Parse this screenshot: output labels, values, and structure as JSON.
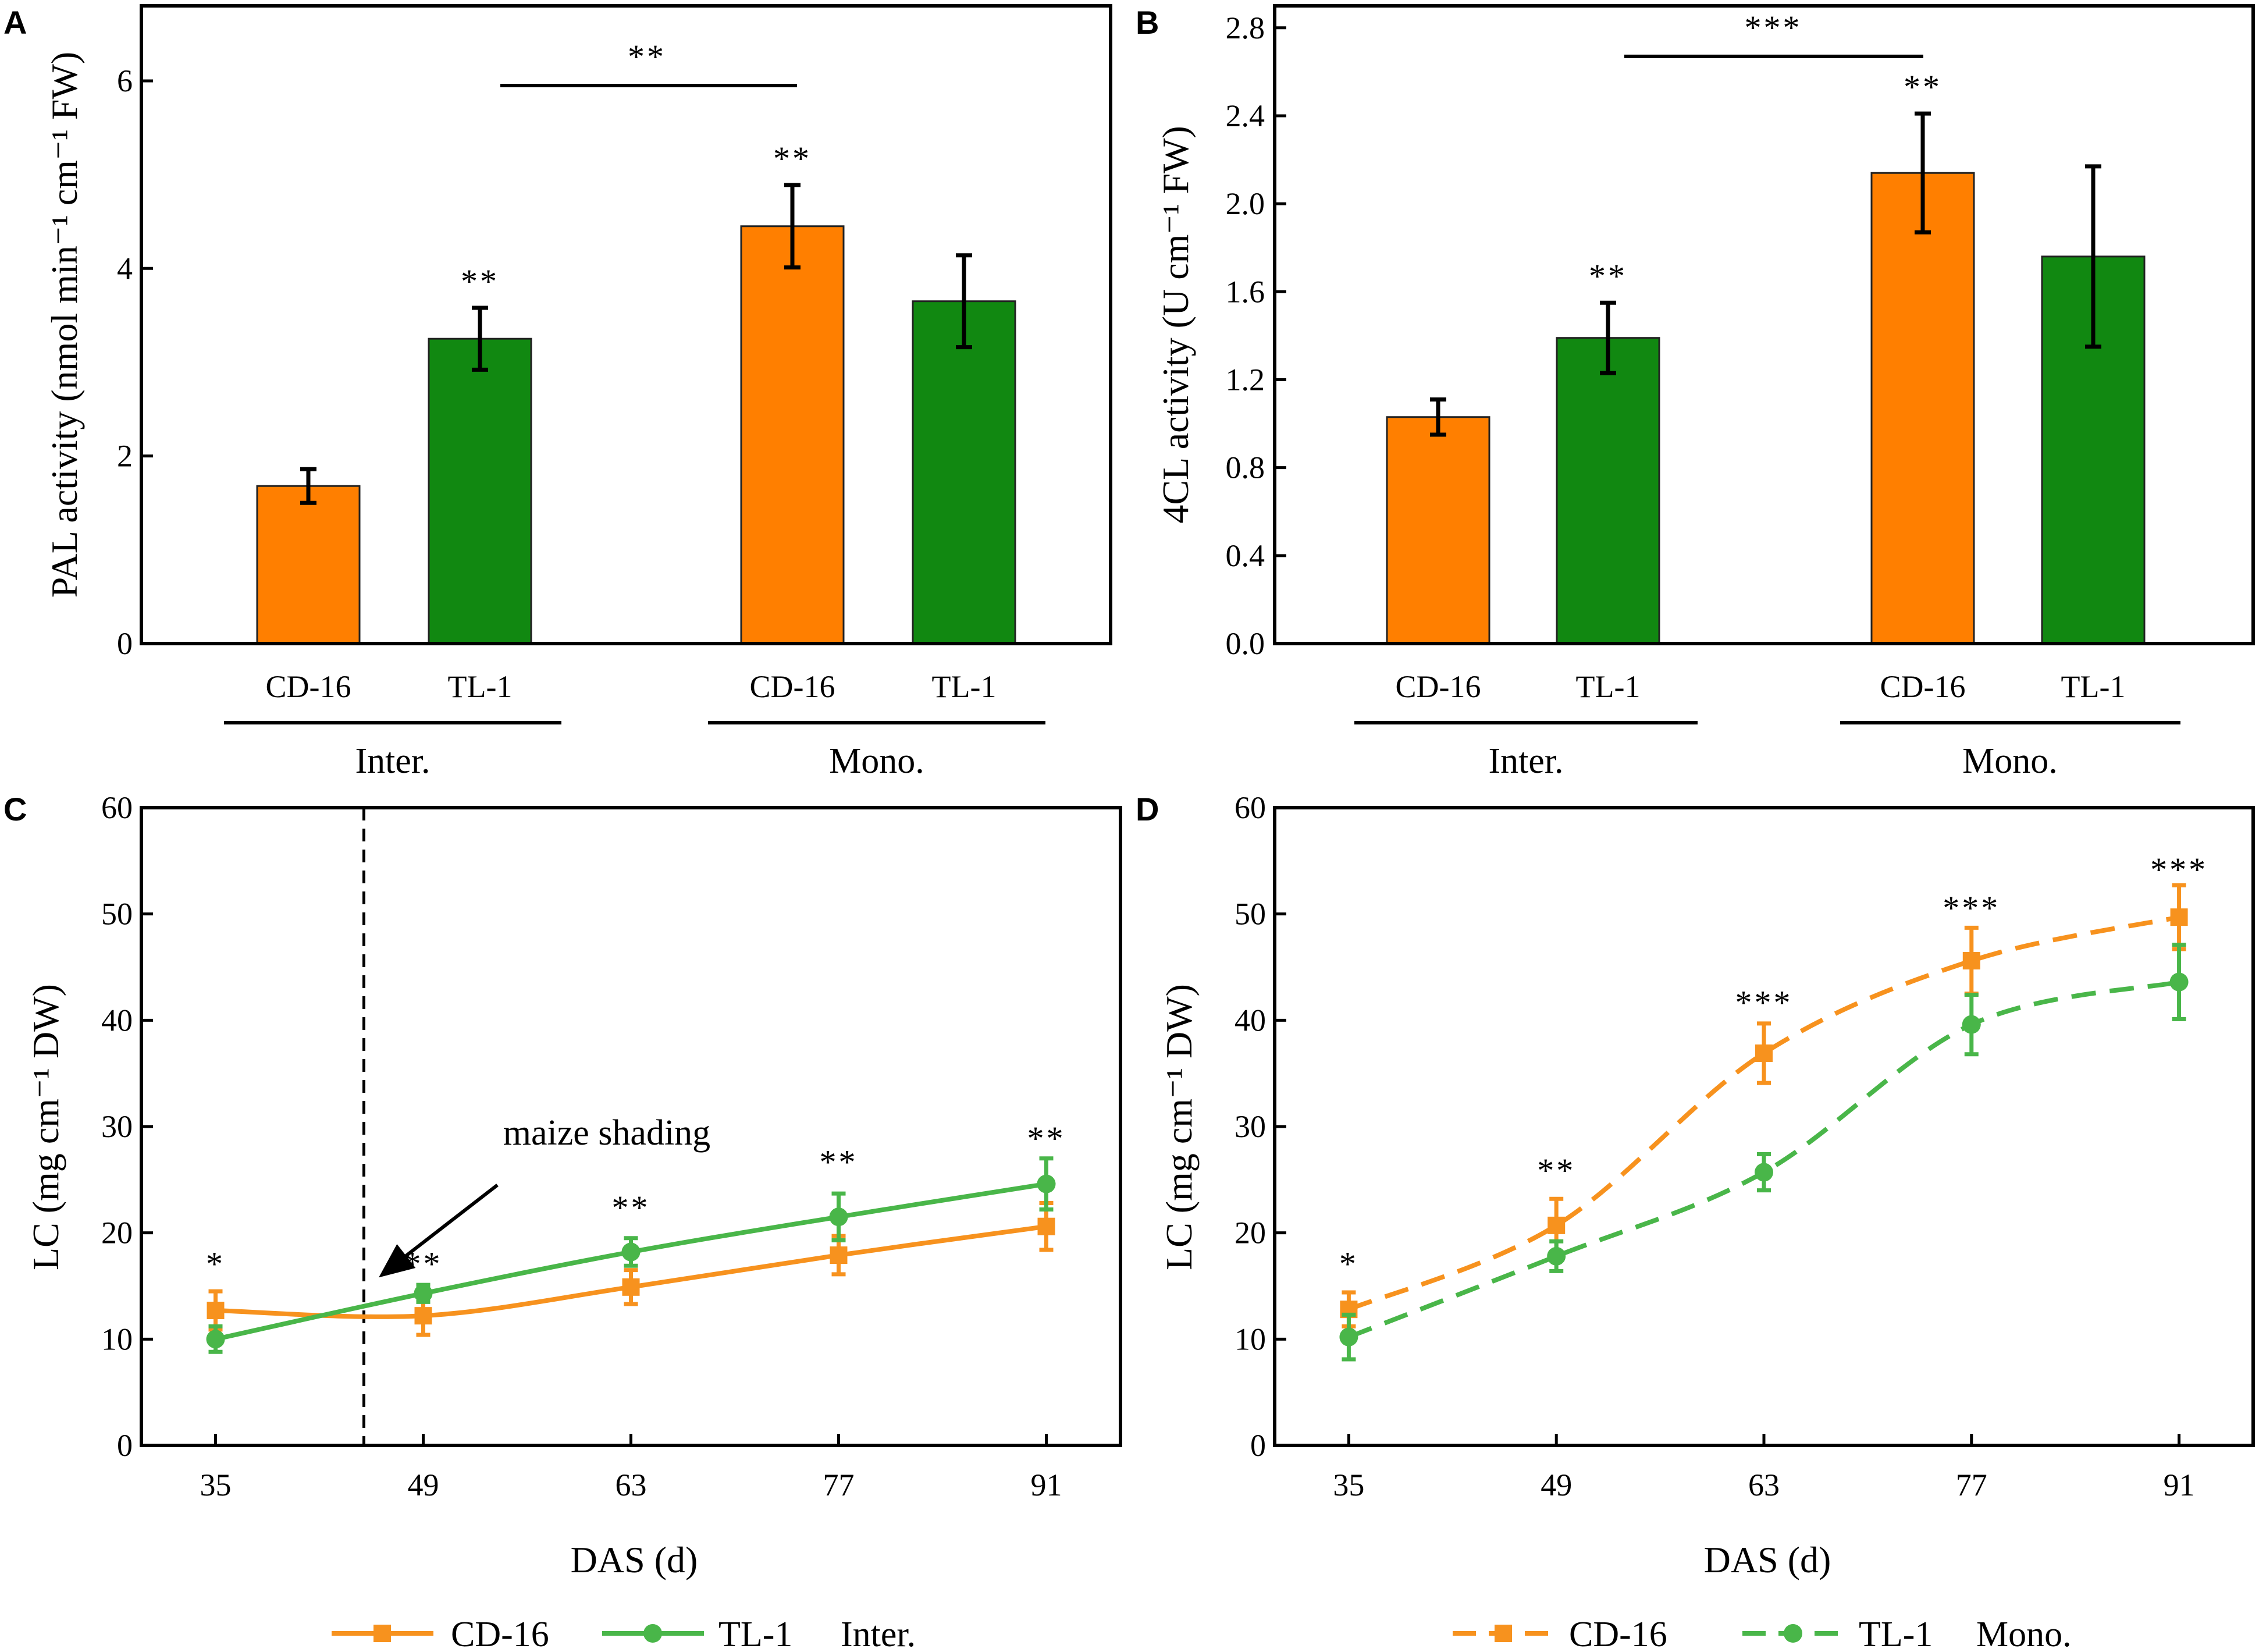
{
  "colors": {
    "cd16": "#ff7f00",
    "tl1": "#118811",
    "cd16_line": "#f7921e",
    "tl1_line": "#49b649"
  },
  "panels": {
    "A": {
      "letter": "A",
      "ylabel": "PAL activity (nmol min⁻¹ cm⁻¹ FW)",
      "ymax_label": "",
      "group_labels": [
        "Inter.",
        "Mono."
      ]
    },
    "B": {
      "letter": "B",
      "ylabel": "4CL activity (U cm⁻¹ FW)",
      "group_labels": [
        "Inter.",
        "Mono."
      ]
    },
    "C": {
      "letter": "C",
      "ylabel": "LC (mg cm⁻¹ DW)",
      "xlabel": "DAS (d)",
      "annotation": "maize shading",
      "legend": {
        "series1": "CD-16",
        "series2": "TL-1",
        "suffix": "Inter."
      }
    },
    "D": {
      "letter": "D",
      "ylabel": "LC (mg cm⁻¹ DW)",
      "xlabel": "DAS (d)",
      "legend": {
        "series1": "CD-16",
        "series2": "TL-1",
        "suffix": "Mono."
      }
    }
  },
  "chart_data": [
    {
      "panel": "A",
      "type": "bar",
      "ylabel": "PAL activity (nmol min-1 cm-1 FW)",
      "ylim": [
        0,
        6.8
      ],
      "yticks": [
        0,
        2,
        4,
        6
      ],
      "ytick_labels": [
        "0",
        "2",
        "4",
        "6"
      ],
      "bars": [
        {
          "group": "Inter.",
          "cultivar": "CD-16",
          "value": 1.68,
          "err": 0.18,
          "sig": "",
          "color": "cd16"
        },
        {
          "group": "Inter.",
          "cultivar": "TL-1",
          "value": 3.25,
          "err": 0.33,
          "sig": "**",
          "color": "tl1"
        },
        {
          "group": "Mono.",
          "cultivar": "CD-16",
          "value": 4.45,
          "err": 0.44,
          "sig": "**",
          "color": "cd16"
        },
        {
          "group": "Mono.",
          "cultivar": "TL-1",
          "value": 3.65,
          "err": 0.49,
          "sig": "",
          "color": "tl1"
        }
      ],
      "bracket": {
        "from": 1,
        "to": 2,
        "y": 5.95,
        "sig": "**"
      }
    },
    {
      "panel": "B",
      "type": "bar",
      "ylabel": "4CL activity (U cm-1 FW)",
      "ylim": [
        0,
        2.9
      ],
      "yticks": [
        0,
        0.4,
        0.8,
        1.2,
        1.6,
        2.0,
        2.4,
        2.8
      ],
      "ytick_labels": [
        "0.0",
        "0.4",
        "0.8",
        "1.2",
        "1.6",
        "2.0",
        "2.4",
        "2.8"
      ],
      "bars": [
        {
          "group": "Inter.",
          "cultivar": "CD-16",
          "value": 1.03,
          "err": 0.08,
          "sig": "",
          "color": "cd16"
        },
        {
          "group": "Inter.",
          "cultivar": "TL-1",
          "value": 1.39,
          "err": 0.16,
          "sig": "**",
          "color": "tl1"
        },
        {
          "group": "Mono.",
          "cultivar": "CD-16",
          "value": 2.14,
          "err": 0.27,
          "sig": "**",
          "color": "cd16"
        },
        {
          "group": "Mono.",
          "cultivar": "TL-1",
          "value": 1.76,
          "err": 0.41,
          "sig": "",
          "color": "tl1"
        }
      ],
      "bracket": {
        "from": 1,
        "to": 2,
        "y": 2.67,
        "sig": "***"
      }
    },
    {
      "panel": "C",
      "type": "line",
      "xlabel": "DAS (d)",
      "ylabel": "LC (mg cm-1 DW)",
      "x": [
        35,
        49,
        63,
        77,
        91
      ],
      "xlim": [
        30,
        96
      ],
      "ylim": [
        0,
        60
      ],
      "yticks": [
        0,
        10,
        20,
        30,
        40,
        50,
        60
      ],
      "dashed": false,
      "vline_x": 45,
      "arrow": {
        "from": [
          54,
          24.5
        ],
        "to": [
          46,
          15.8
        ]
      },
      "series": [
        {
          "name": "CD-16",
          "color": "cd16_line",
          "marker": "square",
          "values": [
            12.7,
            12.2,
            14.9,
            17.9,
            20.6
          ],
          "err": [
            1.8,
            1.8,
            1.6,
            1.8,
            2.2
          ]
        },
        {
          "name": "TL-1",
          "color": "tl1_line",
          "marker": "circle",
          "values": [
            10.0,
            14.3,
            18.2,
            21.5,
            24.6
          ],
          "err": [
            1.2,
            0.8,
            1.3,
            2.2,
            2.4
          ]
        }
      ],
      "sig": [
        "*",
        "**",
        "**",
        "**",
        "**"
      ],
      "sig_y": [
        16.0,
        16.0,
        21.3,
        25.6,
        27.8
      ]
    },
    {
      "panel": "D",
      "type": "line",
      "xlabel": "DAS (d)",
      "ylabel": "LC (mg cm-1 DW)",
      "x": [
        35,
        49,
        63,
        77,
        91
      ],
      "xlim": [
        30,
        96
      ],
      "ylim": [
        0,
        60
      ],
      "yticks": [
        0,
        10,
        20,
        30,
        40,
        50,
        60
      ],
      "dashed": true,
      "series": [
        {
          "name": "CD-16",
          "color": "cd16_line",
          "marker": "square",
          "values": [
            12.8,
            20.7,
            36.9,
            45.6,
            49.7
          ],
          "err": [
            1.6,
            2.5,
            2.8,
            3.1,
            3.0
          ]
        },
        {
          "name": "TL-1",
          "color": "tl1_line",
          "marker": "circle",
          "values": [
            10.2,
            17.8,
            25.7,
            39.6,
            43.6
          ],
          "err": [
            2.1,
            1.4,
            1.7,
            2.8,
            3.5
          ]
        }
      ],
      "sig": [
        "*",
        "**",
        "***",
        "***",
        "***"
      ],
      "sig_y": [
        16.0,
        24.8,
        40.6,
        49.5,
        53.1
      ]
    }
  ]
}
